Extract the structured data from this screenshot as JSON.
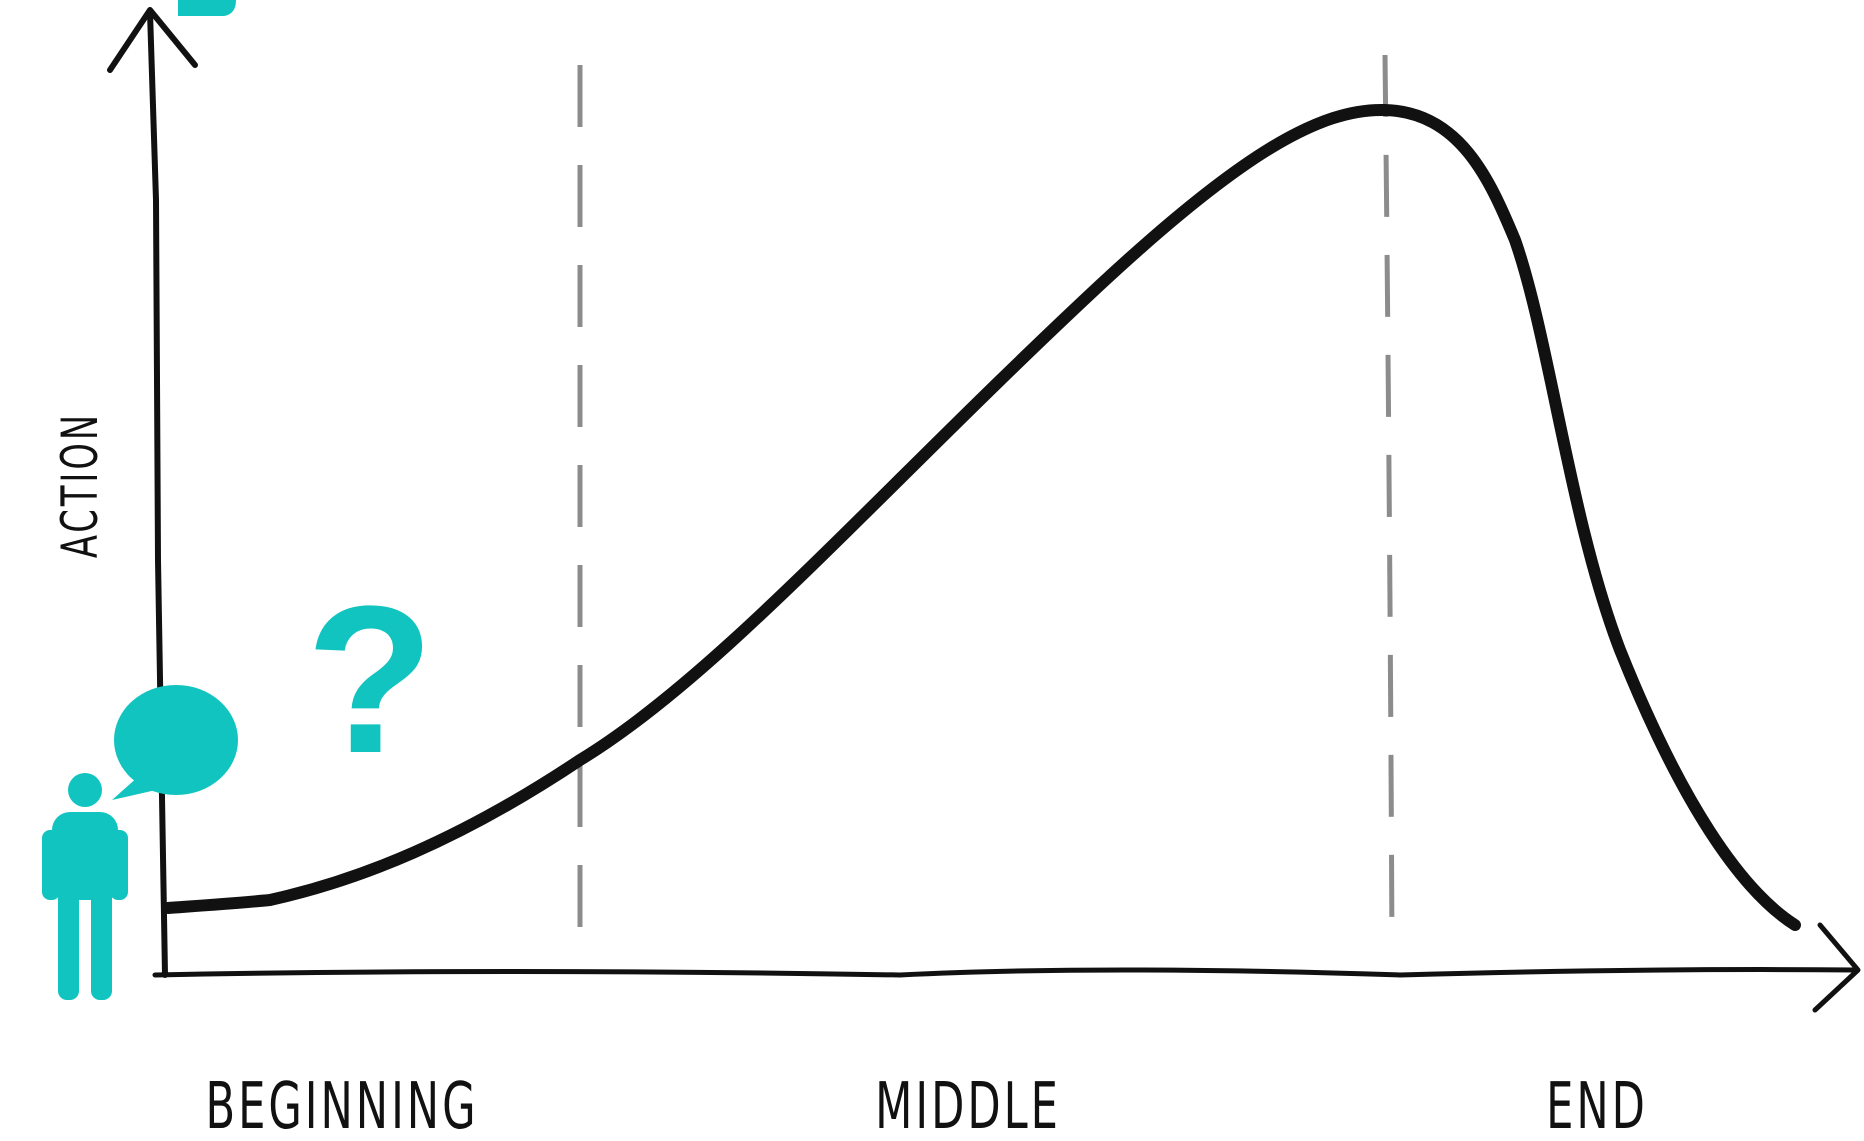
{
  "diagram": {
    "y_axis_label": "ACTION",
    "phase_labels": {
      "beginning": "BEGINNING",
      "middle": "MIDDLE",
      "end": "END"
    },
    "question_mark": "?",
    "colors": {
      "ink": "#111111",
      "divider": "#8c8c8c",
      "accent": "#12c4c0"
    },
    "icons": {
      "person": "person-icon",
      "speech_bubble": "speech-bubble-icon"
    }
  }
}
